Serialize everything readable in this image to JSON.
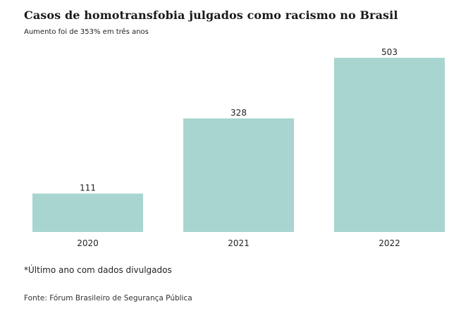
{
  "chart_data": {
    "type": "bar",
    "title": "Casos de homotransfobia julgados como racismo no Brasil",
    "subtitle": "Aumento foi de 353% em três anos",
    "categories": [
      "2020",
      "2021",
      "2022"
    ],
    "values": [
      111,
      328,
      503
    ],
    "data_labels": [
      "111",
      "328",
      "503"
    ],
    "xlabel": "",
    "ylabel": "",
    "ylim": [
      0,
      503
    ],
    "grid": false,
    "legend": "none",
    "bar_color": "#a8d5cf"
  },
  "footnote": "*Último ano com dados divulgados",
  "source": "Fonte: Fórum Brasileiro de Segurança Pública"
}
